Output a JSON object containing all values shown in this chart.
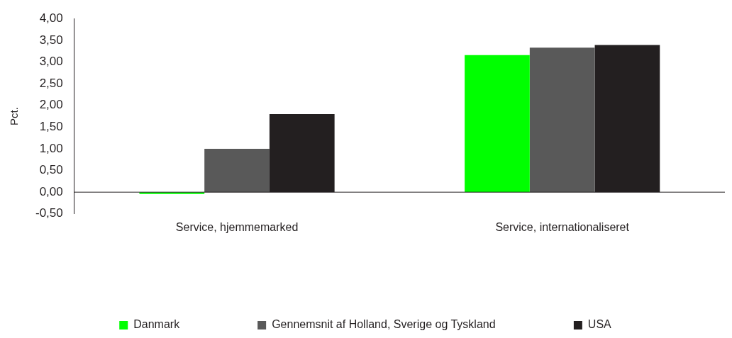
{
  "chart_data": {
    "type": "bar",
    "ylabel": "Pct.",
    "categories": [
      "Service, hjemmemarked",
      "Service, internationaliseret"
    ],
    "series": [
      {
        "name": "Danmark",
        "color": "#00ff00",
        "values": [
          -0.04,
          3.16
        ]
      },
      {
        "name": "Gennemsnit af Holland, Sverige og Tyskland",
        "color": "#595959",
        "values": [
          1.0,
          3.33
        ]
      },
      {
        "name": "USA",
        "color": "#231f20",
        "values": [
          1.8,
          3.39
        ]
      }
    ],
    "ylim": [
      -0.5,
      4
    ],
    "yticks": [
      {
        "value": -0.5,
        "label": "-0,50"
      },
      {
        "value": 0,
        "label": "0,00"
      },
      {
        "value": 0.5,
        "label": "0,50"
      },
      {
        "value": 1,
        "label": "1,00"
      },
      {
        "value": 1.5,
        "label": "1,50"
      },
      {
        "value": 2,
        "label": "2,00"
      },
      {
        "value": 2.5,
        "label": "2,50"
      },
      {
        "value": 3,
        "label": "3,00"
      },
      {
        "value": 3.5,
        "label": "3,50"
      },
      {
        "value": 4,
        "label": "4,00"
      }
    ],
    "grid": false,
    "legend": "bottom"
  }
}
